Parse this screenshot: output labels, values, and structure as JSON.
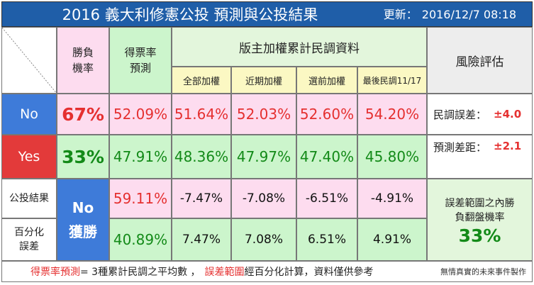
{
  "title": {
    "main": "2016 義大利修憲公投 預測與公投結果",
    "updated_label": "更新：",
    "updated_value": "2016/12/7 08:18"
  },
  "headers": {
    "win_rate": "勝負機率",
    "vote_forecast": "得票率預測",
    "poll_group": "版主加權累計民調資料",
    "risk": "風險評估",
    "poll_cols": [
      "全部加權",
      "近期加權",
      "選前加權",
      "最後民調11/17"
    ]
  },
  "rows": [
    {
      "label": "No",
      "win_rate": "67%",
      "forecast": "52.09%",
      "polls": [
        "51.64%",
        "52.03%",
        "52.60%",
        "54.20%"
      ]
    },
    {
      "label": "Yes",
      "win_rate": "33%",
      "forecast": "47.91%",
      "polls": [
        "48.36%",
        "47.97%",
        "47.40%",
        "45.80%"
      ]
    }
  ],
  "risk": {
    "poll_error_label": "民調誤差：",
    "poll_error_value": "±4.0",
    "forecast_gap_label": "預測差距：",
    "forecast_gap_value": "±2.1"
  },
  "result": {
    "label_result": "公投結果",
    "label_error": "百分化誤差",
    "outcome": "No 獲勝",
    "result_values": [
      "59.11%",
      "40.89%"
    ],
    "diff_negative": [
      "-7.47%",
      "-7.08%",
      "-6.51%",
      "-4.91%"
    ],
    "diff_positive": [
      "7.47%",
      "7.08%",
      "6.51%",
      "4.91%"
    ],
    "flip_label": "誤差範圍之內勝負翻盤機率",
    "flip_value": "33%"
  },
  "footer": {
    "term1": "得票率預測",
    "text1": " = 3種累計民調之平均數 ，",
    "term2": "誤差範圍",
    "text2": "經百分化計算，資料僅供參考",
    "credit": "無情真實的未來事件製作"
  },
  "colors": {
    "title_bg": "#1f5ea8",
    "no_row_bg": "#3e7bd9",
    "yes_row_bg": "#e33a3a",
    "accent_red": "#e53030",
    "accent_green": "#138a18"
  }
}
